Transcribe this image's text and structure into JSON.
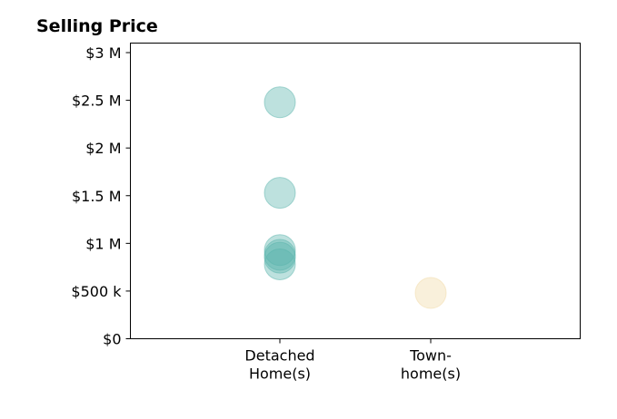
{
  "chart_data": {
    "type": "scatter",
    "title": "Selling Price",
    "xlabel": "",
    "ylabel": "",
    "categories": [
      [
        "Detached",
        "Home(s)"
      ],
      [
        "Town-",
        "home(s)"
      ]
    ],
    "y_ticks": [
      0,
      500000,
      1000000,
      1500000,
      2000000,
      2500000,
      3000000
    ],
    "y_tick_labels": [
      "$0",
      "$500 k",
      "$1 M",
      "$1.5 M",
      "$2 M",
      "$2.5 M",
      "$3 M"
    ],
    "ylim": [
      0,
      3100000
    ],
    "grid": false,
    "legend": "none",
    "series": [
      {
        "category_index": 0,
        "color": "#5ab4ac",
        "values": [
          2480000,
          1530000,
          930000,
          880000,
          850000,
          780000
        ]
      },
      {
        "category_index": 1,
        "color": "#f1d9a5",
        "values": [
          480000
        ]
      }
    ]
  }
}
